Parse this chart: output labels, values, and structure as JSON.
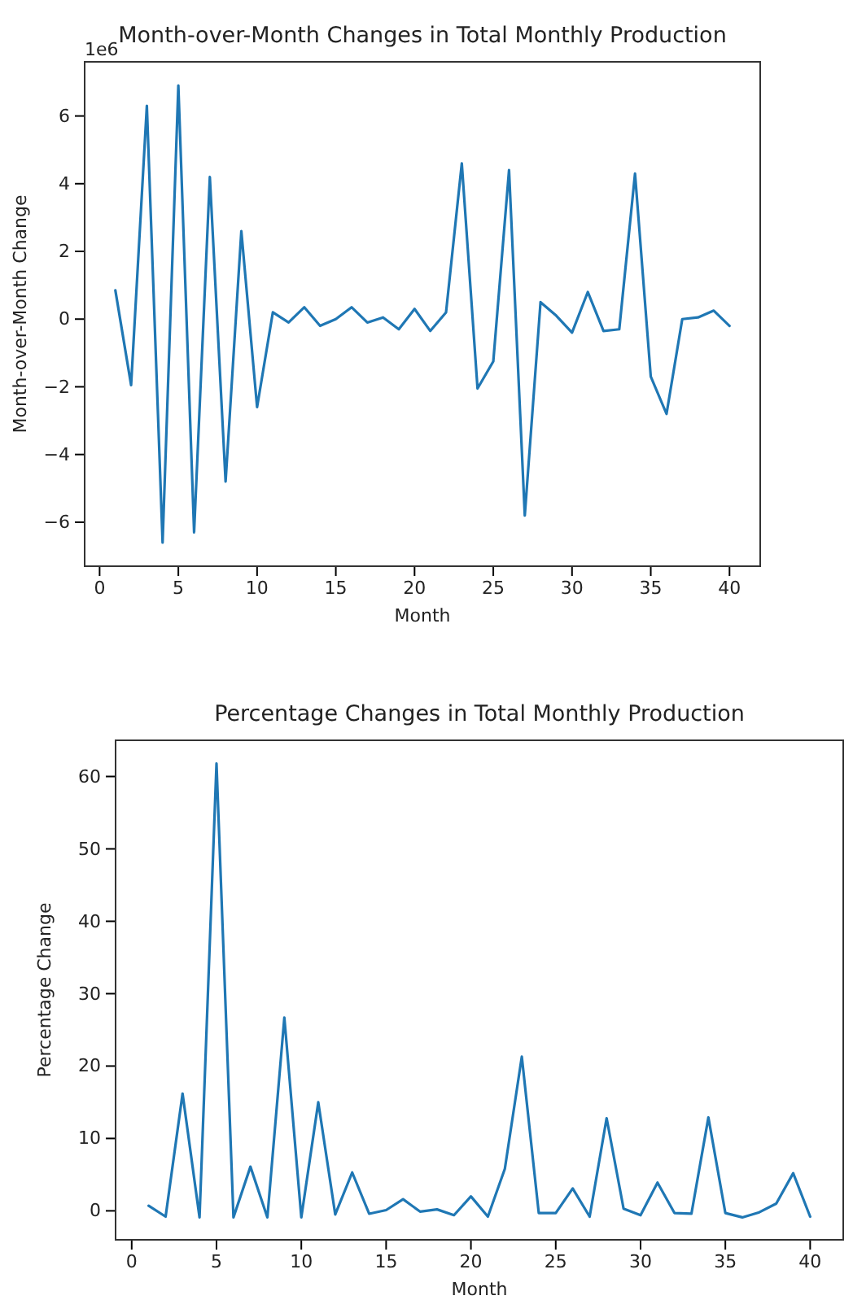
{
  "chart_data": [
    {
      "type": "line",
      "title": "Month-over-Month Changes in Total Monthly Production",
      "xlabel": "Month",
      "ylabel": "Month-over-Month Change",
      "annotations": [
        "1e6"
      ],
      "x": [
        1,
        2,
        3,
        4,
        5,
        6,
        7,
        8,
        9,
        10,
        11,
        12,
        13,
        14,
        15,
        16,
        17,
        18,
        19,
        20,
        21,
        22,
        23,
        24,
        25,
        26,
        27,
        28,
        29,
        30,
        31,
        32,
        33,
        34,
        35,
        36,
        37,
        38,
        39,
        40
      ],
      "series": [
        {
          "color": "#1f77b4",
          "values": [
            0.85,
            -1.95,
            6.3,
            -6.6,
            6.9,
            -6.3,
            4.2,
            -4.8,
            2.6,
            -2.6,
            0.2,
            -0.1,
            0.35,
            -0.2,
            0.0,
            0.35,
            -0.1,
            0.05,
            -0.3,
            0.3,
            -0.35,
            0.2,
            4.6,
            -2.05,
            -1.25,
            4.4,
            -5.8,
            0.5,
            0.1,
            -0.4,
            0.8,
            -0.35,
            -0.3,
            4.3,
            -1.7,
            -2.8,
            0.0,
            0.05,
            0.25,
            -0.2
          ]
        }
      ],
      "xlim": [
        -0.95,
        41.95
      ],
      "xticks": [
        0,
        5,
        10,
        15,
        20,
        25,
        30,
        35,
        40
      ],
      "ylim": [
        -7.3,
        7.6
      ],
      "yticks": [
        {
          "value": -6,
          "label": "−6"
        },
        {
          "value": -4,
          "label": "−4"
        },
        {
          "value": -2,
          "label": "−2"
        },
        0,
        2,
        4,
        6
      ],
      "grid": false
    },
    {
      "type": "line",
      "title": "Percentage Changes in Total Monthly Production",
      "xlabel": "Month",
      "ylabel": "Percentage Change",
      "x": [
        1,
        2,
        3,
        4,
        5,
        6,
        7,
        8,
        9,
        10,
        11,
        12,
        13,
        14,
        15,
        16,
        17,
        18,
        19,
        20,
        21,
        22,
        23,
        24,
        25,
        26,
        27,
        28,
        29,
        30,
        31,
        32,
        33,
        34,
        35,
        36,
        37,
        38,
        39,
        40
      ],
      "series": [
        {
          "color": "#1f77b4",
          "values": [
            0.7,
            -0.8,
            16.2,
            -0.9,
            61.8,
            -0.9,
            6.1,
            -0.9,
            26.7,
            -0.9,
            15.0,
            -0.5,
            5.3,
            -0.4,
            0.1,
            1.6,
            -0.1,
            0.2,
            -0.6,
            2.0,
            -0.8,
            5.8,
            21.3,
            -0.3,
            -0.3,
            3.1,
            -0.8,
            12.8,
            0.3,
            -0.6,
            3.9,
            -0.3,
            -0.4,
            12.9,
            -0.3,
            -0.9,
            -0.2,
            1.0,
            5.2,
            -0.8
          ]
        }
      ],
      "xlim": [
        -0.95,
        41.95
      ],
      "xticks": [
        0,
        5,
        10,
        15,
        20,
        25,
        30,
        35,
        40
      ],
      "ylim": [
        -4.0,
        65.0
      ],
      "yticks": [
        0,
        10,
        20,
        30,
        40,
        50,
        60
      ],
      "grid": false
    }
  ]
}
